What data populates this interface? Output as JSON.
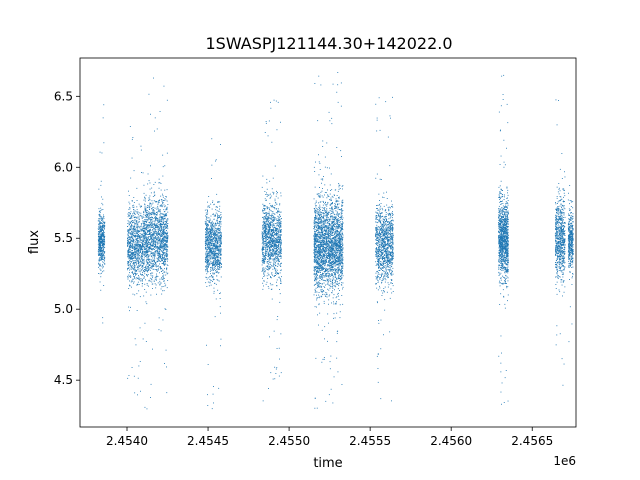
{
  "chart_data": {
    "type": "scatter",
    "title": "1SWASPJ121144.30+142022.0",
    "xlabel": "time",
    "ylabel": "flux",
    "x_offset_label": "1e6",
    "xlim": [
      2453710,
      2456770
    ],
    "ylim": [
      4.17,
      6.77
    ],
    "x_ticks": [
      2.454,
      2.4545,
      2.455,
      2.4555,
      2.456,
      2.4565
    ],
    "x_tick_labels": [
      "2.4540",
      "2.4545",
      "2.4550",
      "2.4555",
      "2.4560",
      "2.4565"
    ],
    "y_ticks": [
      4.5,
      5.0,
      5.5,
      6.0,
      6.5
    ],
    "y_tick_labels": [
      "4.5",
      "5.0",
      "5.5",
      "6.0",
      "6.5"
    ],
    "grid": false,
    "marker_color": "#1f77b4",
    "clusters": [
      {
        "x_start": 2453820,
        "x_end": 2453860,
        "center": 5.48,
        "spread": 0.16,
        "min": 4.8,
        "max": 6.45,
        "count": 500
      },
      {
        "x_start": 2454000,
        "x_end": 2454100,
        "center": 5.45,
        "spread": 0.22,
        "min": 4.35,
        "max": 6.3,
        "count": 900
      },
      {
        "x_start": 2454100,
        "x_end": 2454250,
        "center": 5.5,
        "spread": 0.24,
        "min": 4.3,
        "max": 6.65,
        "count": 1500
      },
      {
        "x_start": 2454480,
        "x_end": 2454580,
        "center": 5.45,
        "spread": 0.2,
        "min": 4.3,
        "max": 6.3,
        "count": 1000
      },
      {
        "x_start": 2454830,
        "x_end": 2454950,
        "center": 5.5,
        "spread": 0.22,
        "min": 4.3,
        "max": 6.5,
        "count": 1200
      },
      {
        "x_start": 2455150,
        "x_end": 2455330,
        "center": 5.45,
        "spread": 0.27,
        "min": 4.3,
        "max": 6.68,
        "count": 2500
      },
      {
        "x_start": 2455530,
        "x_end": 2455640,
        "center": 5.45,
        "spread": 0.22,
        "min": 4.35,
        "max": 6.55,
        "count": 1100
      },
      {
        "x_start": 2456290,
        "x_end": 2456350,
        "center": 5.5,
        "spread": 0.24,
        "min": 4.32,
        "max": 6.67,
        "count": 1100
      },
      {
        "x_start": 2456640,
        "x_end": 2456700,
        "center": 5.5,
        "spread": 0.24,
        "min": 4.32,
        "max": 6.62,
        "count": 700
      },
      {
        "x_start": 2456720,
        "x_end": 2456750,
        "center": 5.48,
        "spread": 0.16,
        "min": 4.7,
        "max": 5.9,
        "count": 400
      }
    ]
  }
}
